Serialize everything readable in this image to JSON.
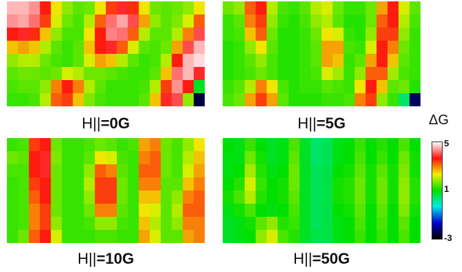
{
  "chart_data": {
    "type": "heatmap",
    "colorbar": {
      "title": "ΔG",
      "ticks": [
        "5",
        "1",
        "-3"
      ],
      "range": [
        -3,
        5
      ],
      "colors": [
        "#000000",
        "#0000d0",
        "#00e8e8",
        "#00e000",
        "#f0f000",
        "#ff1010",
        "#ffffff"
      ]
    },
    "panels": [
      {
        "label_prefix": "H||",
        "label_value": "=0G",
        "grid": [
          [
            4.6,
            4.6,
            4.4,
            3.6,
            2.4,
            1.8,
            1.5,
            1.6,
            2.4,
            3.4,
            3.8,
            3.5,
            2.4,
            1.6,
            1.5,
            1.6,
            1.8,
            2.4
          ],
          [
            4.4,
            4.5,
            4.2,
            3.4,
            2.2,
            1.6,
            1.4,
            2.0,
            3.2,
            4.2,
            4.5,
            4.0,
            2.8,
            1.8,
            1.5,
            1.7,
            2.2,
            3.2
          ],
          [
            3.6,
            3.8,
            3.5,
            2.6,
            1.8,
            1.4,
            1.4,
            2.4,
            3.6,
            4.3,
            4.2,
            3.2,
            2.0,
            1.5,
            1.5,
            2.0,
            3.0,
            4.0
          ],
          [
            2.6,
            2.8,
            2.6,
            2.0,
            1.5,
            1.3,
            1.5,
            2.6,
            3.6,
            3.8,
            3.2,
            2.2,
            1.5,
            1.4,
            1.6,
            2.8,
            4.0,
            4.6
          ],
          [
            1.8,
            2.0,
            2.0,
            1.6,
            1.4,
            1.3,
            1.5,
            2.2,
            2.8,
            2.6,
            2.0,
            1.5,
            1.3,
            1.4,
            2.0,
            3.6,
            4.6,
            4.8
          ],
          [
            1.5,
            1.6,
            1.6,
            1.5,
            1.6,
            2.2,
            2.0,
            1.6,
            1.6,
            1.5,
            1.4,
            1.3,
            1.3,
            1.5,
            2.6,
            4.2,
            4.6,
            3.8
          ],
          [
            1.4,
            1.5,
            1.5,
            1.8,
            3.0,
            3.6,
            3.0,
            2.0,
            1.5,
            1.3,
            1.3,
            1.3,
            1.4,
            2.0,
            3.4,
            4.4,
            3.6,
            0.8
          ],
          [
            1.3,
            1.3,
            1.4,
            2.0,
            3.2,
            3.4,
            2.6,
            1.7,
            1.4,
            1.3,
            1.3,
            1.3,
            1.5,
            2.6,
            3.8,
            4.0,
            1.8,
            -2.6
          ]
        ]
      },
      {
        "label_prefix": "H||",
        "label_value": "=5G",
        "grid": [
          [
            1.6,
            1.8,
            3.2,
            3.6,
            2.0,
            1.4,
            1.3,
            1.5,
            2.0,
            2.2,
            1.6,
            1.3,
            1.3,
            1.6,
            2.8,
            3.6,
            2.2,
            1.5
          ],
          [
            1.3,
            1.5,
            3.0,
            3.4,
            1.8,
            1.3,
            1.2,
            1.4,
            1.8,
            2.0,
            1.5,
            1.2,
            1.2,
            1.6,
            3.2,
            3.6,
            2.0,
            1.4
          ],
          [
            1.3,
            1.4,
            2.6,
            3.2,
            1.6,
            1.2,
            1.2,
            1.3,
            1.6,
            2.4,
            2.2,
            1.3,
            1.2,
            1.8,
            3.4,
            3.4,
            1.8,
            1.3
          ],
          [
            1.2,
            1.3,
            1.8,
            2.4,
            1.5,
            1.2,
            1.2,
            1.3,
            1.5,
            2.8,
            2.8,
            1.4,
            1.3,
            2.2,
            3.6,
            3.0,
            1.6,
            1.3
          ],
          [
            1.2,
            1.3,
            1.5,
            1.8,
            1.4,
            1.2,
            1.2,
            1.3,
            1.5,
            2.8,
            2.6,
            1.3,
            1.5,
            2.8,
            3.6,
            2.6,
            1.5,
            1.3
          ],
          [
            1.2,
            1.3,
            1.4,
            1.6,
            1.4,
            1.2,
            1.2,
            1.3,
            1.4,
            2.2,
            1.9,
            1.3,
            1.8,
            3.2,
            3.2,
            1.9,
            1.4,
            1.3
          ],
          [
            1.3,
            1.5,
            2.0,
            3.0,
            2.4,
            1.4,
            1.2,
            1.3,
            1.3,
            1.5,
            1.4,
            1.3,
            2.4,
            3.6,
            2.6,
            1.5,
            1.6,
            1.2
          ],
          [
            1.4,
            1.6,
            2.8,
            3.4,
            2.8,
            1.5,
            1.2,
            1.2,
            1.2,
            1.3,
            1.3,
            1.4,
            3.0,
            3.4,
            1.8,
            1.3,
            0.4,
            -2.4
          ]
        ]
      },
      {
        "label_prefix": "H||",
        "label_value": "=10G",
        "grid": [
          [
            1.3,
            1.4,
            3.4,
            3.6,
            1.6,
            1.3,
            1.3,
            1.4,
            1.6,
            1.5,
            1.3,
            1.4,
            2.8,
            3.0,
            1.6,
            1.4,
            1.8,
            2.4
          ],
          [
            1.6,
            1.5,
            3.6,
            3.8,
            1.7,
            1.3,
            1.3,
            1.5,
            2.4,
            2.2,
            1.4,
            1.3,
            3.0,
            3.2,
            1.6,
            1.4,
            2.0,
            2.6
          ],
          [
            1.4,
            1.4,
            3.6,
            3.8,
            1.6,
            1.3,
            1.3,
            1.8,
            3.2,
            3.0,
            1.5,
            1.3,
            3.2,
            3.2,
            1.6,
            1.4,
            2.2,
            2.8
          ],
          [
            1.3,
            1.4,
            3.4,
            3.6,
            1.6,
            1.3,
            1.3,
            2.0,
            3.4,
            3.4,
            1.6,
            1.3,
            3.0,
            3.0,
            1.5,
            1.5,
            2.6,
            3.0
          ],
          [
            1.3,
            1.4,
            3.2,
            3.6,
            1.6,
            1.3,
            1.3,
            1.8,
            3.4,
            3.4,
            1.6,
            1.3,
            2.6,
            2.6,
            1.5,
            1.8,
            3.0,
            3.2
          ],
          [
            1.3,
            1.4,
            3.0,
            3.4,
            1.6,
            1.3,
            1.3,
            1.6,
            3.0,
            3.0,
            1.5,
            1.3,
            2.4,
            2.2,
            1.5,
            2.0,
            3.2,
            3.2
          ],
          [
            1.3,
            1.4,
            3.0,
            3.4,
            1.8,
            1.3,
            1.3,
            1.4,
            1.8,
            1.8,
            1.4,
            1.3,
            2.6,
            2.0,
            1.5,
            1.8,
            3.0,
            3.0
          ],
          [
            1.3,
            1.6,
            3.2,
            3.6,
            2.2,
            1.3,
            1.3,
            1.3,
            1.4,
            1.4,
            1.3,
            1.3,
            2.8,
            2.2,
            1.5,
            1.5,
            2.8,
            3.0
          ]
        ]
      },
      {
        "label_prefix": "H||",
        "label_value": "=50G",
        "grid": [
          [
            1.0,
            0.9,
            1.3,
            1.0,
            0.8,
            0.9,
            1.4,
            0.8,
            0.4,
            0.5,
            0.9,
            1.0,
            1.3,
            1.0,
            1.2,
            1.0,
            1.4,
            1.0
          ],
          [
            0.9,
            0.9,
            1.6,
            1.1,
            0.8,
            0.9,
            1.5,
            0.8,
            0.4,
            0.5,
            0.9,
            1.0,
            1.4,
            1.0,
            1.3,
            1.0,
            1.6,
            1.1
          ],
          [
            0.9,
            1.0,
            1.9,
            1.2,
            0.9,
            1.0,
            1.6,
            0.8,
            0.5,
            0.6,
            1.0,
            1.1,
            1.5,
            1.1,
            1.5,
            1.1,
            1.7,
            1.1
          ],
          [
            1.0,
            1.2,
            2.2,
            1.3,
            1.0,
            1.1,
            1.6,
            0.8,
            0.5,
            0.6,
            1.1,
            1.2,
            1.6,
            1.1,
            1.6,
            1.1,
            1.8,
            1.2
          ],
          [
            1.1,
            1.4,
            2.0,
            1.2,
            1.0,
            1.1,
            1.5,
            0.8,
            0.5,
            0.6,
            1.1,
            1.2,
            1.6,
            1.1,
            1.6,
            1.1,
            1.8,
            1.2
          ],
          [
            0.9,
            1.1,
            1.4,
            1.0,
            0.9,
            1.0,
            1.4,
            0.8,
            0.5,
            0.6,
            1.0,
            1.1,
            1.5,
            1.0,
            1.5,
            1.0,
            1.7,
            1.1
          ],
          [
            0.8,
            0.9,
            1.1,
            1.5,
            1.8,
            1.2,
            1.3,
            0.8,
            0.5,
            0.6,
            0.9,
            1.0,
            1.4,
            1.0,
            1.4,
            1.0,
            1.5,
            1.0
          ],
          [
            0.8,
            0.9,
            1.0,
            1.8,
            2.2,
            1.4,
            1.2,
            0.8,
            0.6,
            0.6,
            0.9,
            1.0,
            1.3,
            1.0,
            1.3,
            1.0,
            1.4,
            1.0
          ]
        ]
      }
    ]
  }
}
